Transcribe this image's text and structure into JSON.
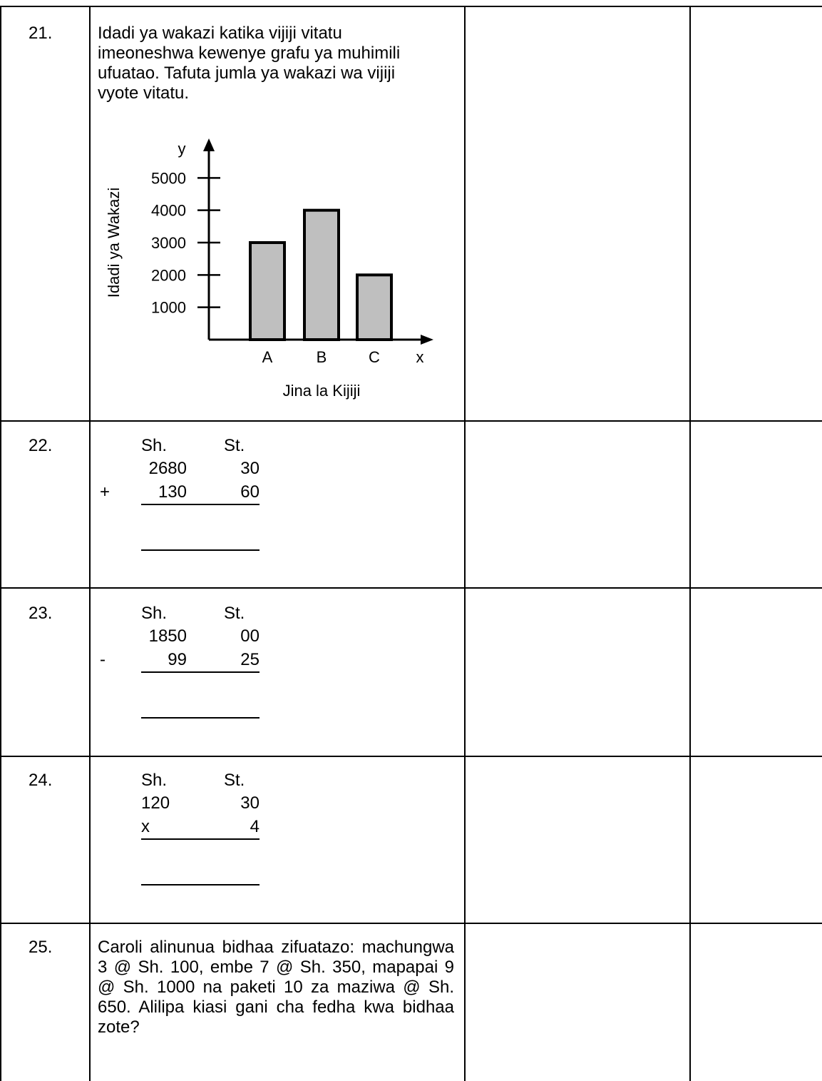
{
  "questions": [
    {
      "number": "21.",
      "text": "Idadi ya wakazi katika vijiji vitatu imeoneshwa kewenye grafu ya muhimili ufuatao. Tafuta jumla ya wakazi wa vijiji vyote vitatu."
    },
    {
      "number": "22.",
      "calc": {
        "head_sh": "Sh.",
        "head_st": "St.",
        "top_sh": "2680",
        "top_st": "30",
        "operator": "+",
        "bottom_sh": "130",
        "bottom_st": "60"
      }
    },
    {
      "number": "23.",
      "calc": {
        "head_sh": "Sh.",
        "head_st": "St.",
        "top_sh": "1850",
        "top_st": "00",
        "operator": "-",
        "bottom_sh": "99",
        "bottom_st": "25"
      }
    },
    {
      "number": "24.",
      "calc": {
        "head_sh": "Sh.",
        "head_st": "St.",
        "top_sh": "120",
        "top_st": "30",
        "operator": "x",
        "bottom_sh": "",
        "bottom_st": "4"
      }
    },
    {
      "number": "25.",
      "text": "Caroli alinunua bidhaa zifuatazo: machungwa 3 @ Sh. 100, embe 7 @ Sh. 350, mapapai 9 @ Sh. 1000 na paketi 10 za maziwa @ Sh. 650. Alilipa kiasi gani cha fedha kwa bidhaa zote?"
    }
  ],
  "chart_data": {
    "type": "bar",
    "categories": [
      "A",
      "B",
      "C"
    ],
    "values": [
      3000,
      4000,
      2000
    ],
    "ylabel": "Idadi ya Wakazi",
    "xlabel": "Jina la Kijiji",
    "x_axis_letter": "x",
    "y_axis_letter": "y",
    "yticks": [
      1000,
      2000,
      3000,
      4000,
      5000
    ],
    "ylim": [
      0,
      5000
    ],
    "bar_color": "#bfbfbf",
    "grid": false
  }
}
